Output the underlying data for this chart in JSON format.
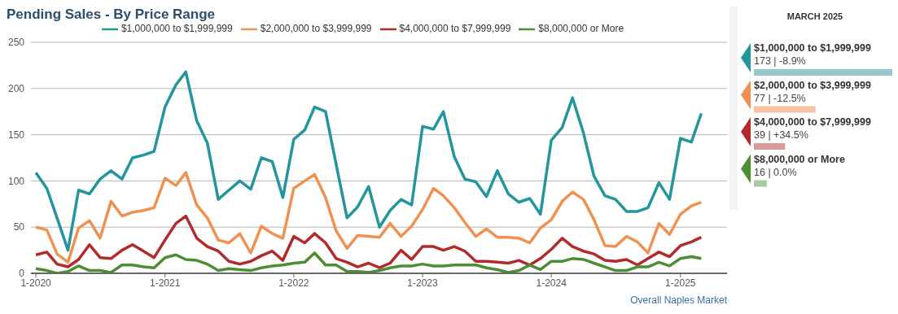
{
  "chart_data": [
    {
      "type": "line",
      "title": "Pending Sales - By Price Range",
      "legend": "top",
      "grid": "y",
      "marker": "none",
      "line_style": "solid",
      "x": [
        "2020-01",
        "2020-02",
        "2020-03",
        "2020-04",
        "2020-05",
        "2020-06",
        "2020-07",
        "2020-08",
        "2020-09",
        "2020-10",
        "2020-11",
        "2020-12",
        "2021-01",
        "2021-02",
        "2021-03",
        "2021-04",
        "2021-05",
        "2021-06",
        "2021-07",
        "2021-08",
        "2021-09",
        "2021-10",
        "2021-11",
        "2021-12",
        "2022-01",
        "2022-02",
        "2022-03",
        "2022-04",
        "2022-05",
        "2022-06",
        "2022-07",
        "2022-08",
        "2022-09",
        "2022-10",
        "2022-11",
        "2022-12",
        "2023-01",
        "2023-02",
        "2023-03",
        "2023-04",
        "2023-05",
        "2023-06",
        "2023-07",
        "2023-08",
        "2023-09",
        "2023-10",
        "2023-11",
        "2023-12",
        "2024-01",
        "2024-02",
        "2024-03",
        "2024-04",
        "2024-05",
        "2024-06",
        "2024-07",
        "2024-08",
        "2024-09",
        "2024-10",
        "2024-11",
        "2024-12",
        "2025-01",
        "2025-02",
        "2025-03"
      ],
      "series": [
        {
          "name": "$1,000,000 to $1,999,999",
          "color": "#23959d",
          "values": [
            109,
            92,
            60,
            25,
            90,
            86,
            102,
            111,
            102,
            125,
            128,
            132,
            180,
            204,
            218,
            165,
            141,
            80,
            90,
            100,
            91,
            125,
            121,
            82,
            145,
            155,
            180,
            175,
            118,
            60,
            72,
            94,
            50,
            68,
            80,
            74,
            159,
            156,
            175,
            126,
            102,
            99,
            83,
            111,
            86,
            77,
            81,
            64,
            144,
            158,
            190,
            152,
            105,
            84,
            80,
            67,
            67,
            71,
            98,
            80,
            146,
            142,
            173
          ]
        },
        {
          "name": "$2,000,000 to $3,999,999",
          "color": "#ef9150",
          "values": [
            50,
            47,
            21,
            12,
            49,
            57,
            38,
            78,
            62,
            66,
            68,
            71,
            103,
            95,
            109,
            74,
            60,
            36,
            33,
            43,
            22,
            51,
            43,
            38,
            92,
            100,
            107,
            82,
            46,
            27,
            41,
            40,
            39,
            54,
            40,
            51,
            69,
            92,
            84,
            71,
            55,
            40,
            48,
            39,
            39,
            38,
            33,
            49,
            58,
            78,
            88,
            80,
            58,
            30,
            29,
            40,
            34,
            22,
            54,
            42,
            64,
            73,
            77
          ]
        },
        {
          "name": "$4,000,000 to $7,999,999",
          "color": "#b22b2b",
          "values": [
            20,
            23,
            10,
            7,
            15,
            31,
            17,
            16,
            25,
            31,
            24,
            17,
            36,
            54,
            62,
            38,
            29,
            24,
            13,
            10,
            13,
            19,
            24,
            14,
            40,
            33,
            43,
            33,
            16,
            12,
            7,
            11,
            6,
            11,
            25,
            15,
            29,
            29,
            25,
            29,
            24,
            13,
            13,
            12,
            11,
            14,
            9,
            16,
            26,
            38,
            29,
            24,
            21,
            14,
            13,
            15,
            9,
            16,
            23,
            18,
            30,
            34,
            39
          ]
        },
        {
          "name": "$8,000,000 or More",
          "color": "#4b8f32",
          "values": [
            5,
            3,
            0,
            2,
            8,
            3,
            3,
            1,
            9,
            9,
            7,
            6,
            17,
            20,
            15,
            14,
            10,
            3,
            5,
            4,
            3,
            6,
            8,
            9,
            11,
            12,
            22,
            9,
            9,
            2,
            2,
            1,
            3,
            6,
            8,
            8,
            10,
            8,
            8,
            9,
            9,
            9,
            6,
            4,
            1,
            3,
            9,
            4,
            13,
            13,
            16,
            15,
            11,
            7,
            3,
            3,
            7,
            7,
            12,
            8,
            16,
            18,
            16
          ]
        }
      ],
      "xlim": [
        "2019-12-18",
        "2025-05-13"
      ],
      "xticks": [
        {
          "value": "2020-01",
          "label": "1-2020"
        },
        {
          "value": "2021-01",
          "label": "1-2021"
        },
        {
          "value": "2022-01",
          "label": "1-2022"
        },
        {
          "value": "2023-01",
          "label": "1-2023"
        },
        {
          "value": "2024-01",
          "label": "1-2024"
        },
        {
          "value": "2025-01",
          "label": "1-2025"
        }
      ],
      "ylim": [
        0,
        250
      ],
      "yticks": [
        0,
        50,
        100,
        150,
        200,
        250
      ],
      "annotations": [
        "Overall Naples Market"
      ]
    },
    {
      "type": "bar",
      "orientation": "horizontal",
      "title": "MARCH 2025",
      "categories": [
        "$1,000,000 to $1,999,999",
        "$2,000,000 to $3,999,999",
        "$4,000,000 to $7,999,999",
        "$8,000,000 or More"
      ],
      "values": [
        173,
        77,
        39,
        16
      ],
      "colors": [
        "#96c9cd",
        "#f6c3a4",
        "#d89a9a",
        "#a9c99e"
      ],
      "value_labels": [
        "173 | -8.9%",
        "77 | -12.5%",
        "39 | +34.5%",
        "16 | 0.0%"
      ]
    }
  ]
}
